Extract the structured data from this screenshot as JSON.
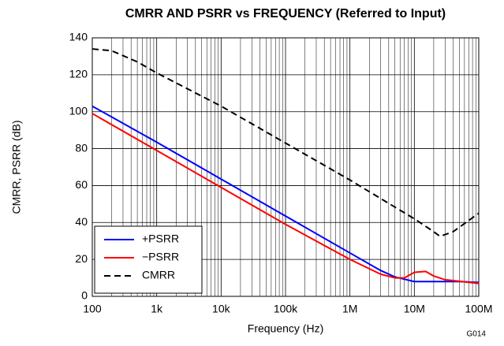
{
  "chart_data": {
    "type": "line",
    "title": "CMRR AND PSRR vs FREQUENCY (Referred to Input)",
    "x_label": "Frequency (Hz)",
    "y_label": "CMRR, PSRR (dB)",
    "note": "G014",
    "xscale": "log",
    "xlim": [
      100,
      100000000
    ],
    "xticks": [
      100,
      {
        "value": 1000,
        "label": "1k"
      },
      {
        "value": 10000,
        "label": "10k"
      },
      {
        "value": 100000,
        "label": "100k"
      },
      {
        "value": 1000000,
        "label": "1M"
      },
      {
        "value": 10000000,
        "label": "10M"
      },
      {
        "value": 100000000,
        "label": "100M"
      }
    ],
    "ylim": [
      0,
      140
    ],
    "yticks": [
      0,
      20,
      40,
      60,
      80,
      100,
      120,
      140
    ],
    "grid": true,
    "legend": "lower left",
    "series": [
      {
        "name": "+PSRR",
        "color": "#0000ff",
        "style": "solid",
        "x": [
          100,
          1000,
          10000,
          100000,
          1000000,
          3000000,
          5000000,
          10000000,
          20000000,
          50000000,
          100000000
        ],
        "values": [
          103,
          83.5,
          63.5,
          43.5,
          23.5,
          14,
          10.5,
          8,
          8,
          8,
          7.5
        ]
      },
      {
        "name": "−PSRR",
        "color": "#ff0000",
        "style": "solid",
        "x": [
          100,
          1000,
          10000,
          100000,
          1000000,
          3000000,
          5000000,
          7000000,
          10000000,
          15000000,
          20000000,
          30000000,
          100000000
        ],
        "values": [
          99,
          79,
          59,
          39,
          20,
          12,
          10,
          10,
          13,
          13.5,
          11,
          9,
          7
        ]
      },
      {
        "name": "CMRR",
        "color": "#000000",
        "style": "dashed",
        "x": [
          100,
          200,
          500,
          1000,
          10000,
          100000,
          1000000,
          10000000,
          20000000,
          25000000,
          40000000,
          100000000
        ],
        "values": [
          134,
          133,
          127,
          121,
          103,
          83,
          63,
          42,
          35,
          32.5,
          35,
          45
        ]
      }
    ]
  }
}
